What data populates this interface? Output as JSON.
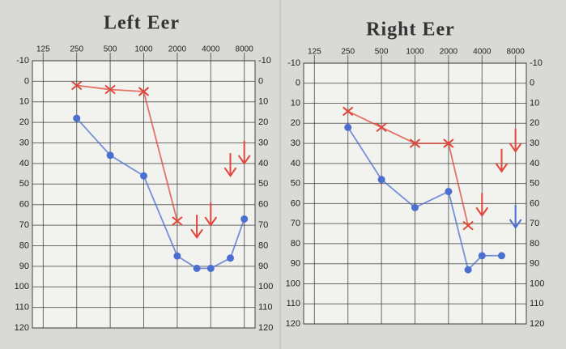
{
  "chart_data": [
    {
      "type": "line",
      "title": "Left Eer",
      "xscale": "log",
      "xlim": [
        100,
        10000
      ],
      "xticks": [
        125,
        250,
        500,
        1000,
        2000,
        4000,
        8000
      ],
      "ylim": [
        -10,
        120
      ],
      "yticks": [
        -10,
        0,
        10,
        20,
        30,
        40,
        50,
        60,
        70,
        80,
        90,
        100,
        110,
        120
      ],
      "y_inverted": true,
      "grid": true,
      "series": [
        {
          "color": "#e0473a",
          "marker": "x",
          "connect": true,
          "x": [
            250,
            500,
            1000,
            2000
          ],
          "values": [
            2,
            4,
            5,
            68
          ]
        },
        {
          "color": "#e0473a",
          "marker": "arrow",
          "connect": false,
          "x": [
            3000,
            4000,
            6000,
            8000
          ],
          "values": [
            76,
            70,
            46,
            40
          ]
        },
        {
          "color": "#4a6fd0",
          "marker": "o",
          "connect": true,
          "x": [
            250,
            500,
            1000,
            2000,
            3000,
            4000,
            6000,
            8000
          ],
          "values": [
            18,
            36,
            46,
            85,
            91,
            91,
            86,
            67
          ]
        }
      ]
    },
    {
      "type": "line",
      "title": "Right Eer",
      "xscale": "log",
      "xlim": [
        100,
        10000
      ],
      "xticks": [
        125,
        250,
        500,
        1000,
        2000,
        4000,
        8000
      ],
      "ylim": [
        -10,
        120
      ],
      "yticks": [
        -10,
        0,
        10,
        20,
        30,
        40,
        50,
        60,
        70,
        80,
        90,
        100,
        110,
        120
      ],
      "y_inverted": true,
      "grid": true,
      "series": [
        {
          "color": "#e0473a",
          "marker": "x",
          "connect": true,
          "x": [
            250,
            500,
            1000,
            2000,
            3000
          ],
          "values": [
            14,
            22,
            30,
            30,
            71
          ]
        },
        {
          "color": "#e0473a",
          "marker": "arrow",
          "connect": false,
          "x": [
            4000,
            6000,
            8000
          ],
          "values": [
            66,
            44,
            34
          ]
        },
        {
          "color": "#4a6fd0",
          "marker": "o",
          "connect": true,
          "x": [
            250,
            500,
            1000,
            2000,
            3000,
            4000,
            6000
          ],
          "values": [
            22,
            48,
            62,
            54,
            93,
            86,
            86
          ]
        },
        {
          "color": "#4a6fd0",
          "marker": "arrow",
          "connect": false,
          "x": [
            8000
          ],
          "values": [
            72
          ]
        }
      ]
    }
  ]
}
